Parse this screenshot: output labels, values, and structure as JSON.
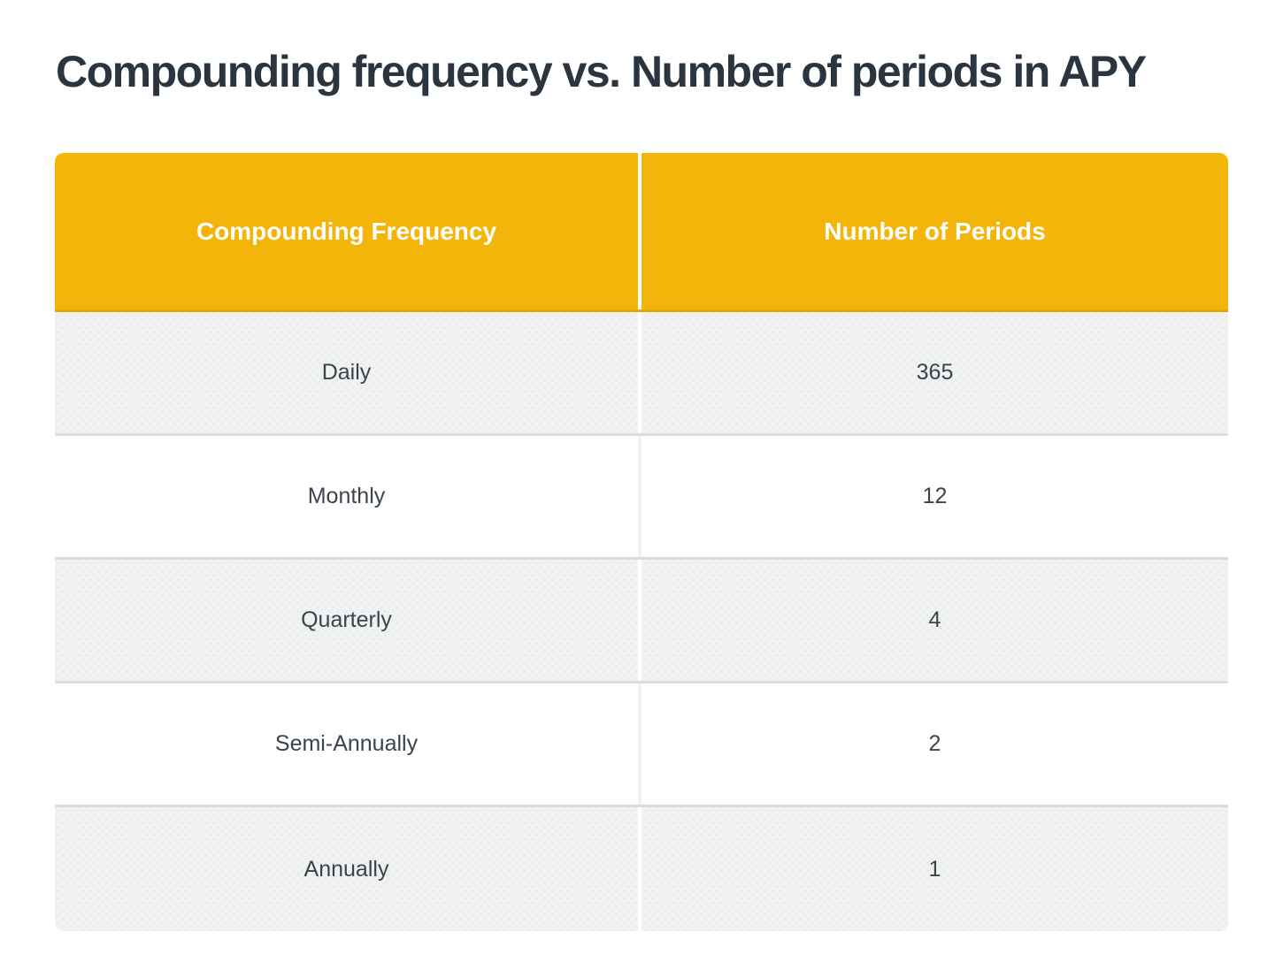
{
  "page": {
    "title": "Compounding frequency vs. Number of periods in APY"
  },
  "table": {
    "headers": [
      "Compounding Frequency",
      "Number of Periods"
    ],
    "rows": [
      {
        "frequency": "Daily",
        "periods": "365"
      },
      {
        "frequency": "Monthly",
        "periods": "12"
      },
      {
        "frequency": "Quarterly",
        "periods": "4"
      },
      {
        "frequency": "Semi-Annually",
        "periods": "2"
      },
      {
        "frequency": "Annually",
        "periods": "1"
      }
    ]
  },
  "colors": {
    "header_bg": "#F4B50B",
    "header_edge": "#E2A60B",
    "header_text": "#FFFFFF",
    "title_text": "#2B3540",
    "cell_text": "#3A444E",
    "row_alt_bg": "#F0F2F1",
    "row_alt_dot": "#E3E6E5",
    "row_border": "#D9DEDE",
    "divider_on_white": "#F0F2F2"
  },
  "chart_data": {
    "type": "table",
    "title": "Compounding frequency vs. Number of periods in APY",
    "columns": [
      "Compounding Frequency",
      "Number of Periods"
    ],
    "rows": [
      [
        "Daily",
        365
      ],
      [
        "Monthly",
        12
      ],
      [
        "Quarterly",
        4
      ],
      [
        "Semi-Annually",
        2
      ],
      [
        "Annually",
        1
      ]
    ],
    "layout_hints": {
      "header_fill": "#F4B50B",
      "zebra_striping": "odd rows light gray with dot texture, even rows white",
      "alignment": "center"
    }
  }
}
